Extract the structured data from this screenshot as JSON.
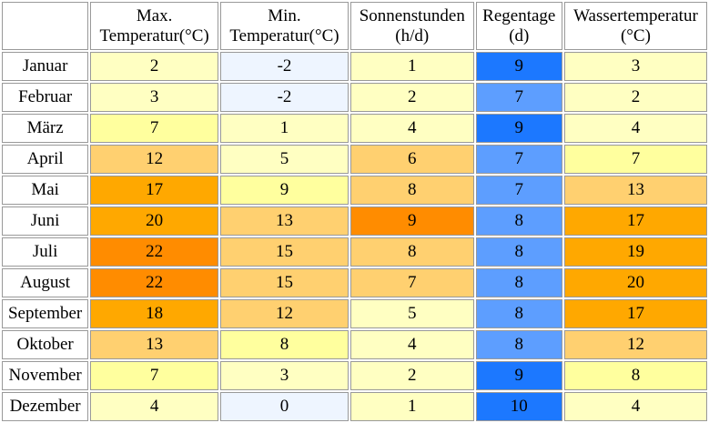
{
  "headers": [
    {
      "line1": "Max.",
      "line2": "Temperatur(°C)"
    },
    {
      "line1": "Min.",
      "line2": "Temperatur(°C)"
    },
    {
      "line1": "Sonnenstunden",
      "line2": "(h/d)"
    },
    {
      "line1": "Regentage",
      "line2": "(d)"
    },
    {
      "line1": "Wassertemperatur",
      "line2": "(°C)"
    }
  ],
  "rows": [
    {
      "month": "Januar",
      "cells": [
        {
          "v": "2",
          "c": "#ffffc2"
        },
        {
          "v": "-2",
          "c": "#eef5ff"
        },
        {
          "v": "1",
          "c": "#ffffc2"
        },
        {
          "v": "9",
          "c": "#1c78ff"
        },
        {
          "v": "3",
          "c": "#ffffc2"
        }
      ]
    },
    {
      "month": "Februar",
      "cells": [
        {
          "v": "3",
          "c": "#ffffc2"
        },
        {
          "v": "-2",
          "c": "#eef5ff"
        },
        {
          "v": "2",
          "c": "#ffffc2"
        },
        {
          "v": "7",
          "c": "#5d9eff"
        },
        {
          "v": "2",
          "c": "#ffffc2"
        }
      ]
    },
    {
      "month": "März",
      "cells": [
        {
          "v": "7",
          "c": "#ffff9e"
        },
        {
          "v": "1",
          "c": "#ffffc2"
        },
        {
          "v": "4",
          "c": "#ffffc2"
        },
        {
          "v": "9",
          "c": "#1c78ff"
        },
        {
          "v": "4",
          "c": "#ffffc2"
        }
      ]
    },
    {
      "month": "April",
      "cells": [
        {
          "v": "12",
          "c": "#ffd070"
        },
        {
          "v": "5",
          "c": "#ffffc2"
        },
        {
          "v": "6",
          "c": "#ffd070"
        },
        {
          "v": "7",
          "c": "#5d9eff"
        },
        {
          "v": "7",
          "c": "#ffff9e"
        }
      ]
    },
    {
      "month": "Mai",
      "cells": [
        {
          "v": "17",
          "c": "#ffa800"
        },
        {
          "v": "9",
          "c": "#ffff9e"
        },
        {
          "v": "8",
          "c": "#ffd070"
        },
        {
          "v": "7",
          "c": "#5d9eff"
        },
        {
          "v": "13",
          "c": "#ffd070"
        }
      ]
    },
    {
      "month": "Juni",
      "cells": [
        {
          "v": "20",
          "c": "#ffa800"
        },
        {
          "v": "13",
          "c": "#ffd070"
        },
        {
          "v": "9",
          "c": "#ff8c00"
        },
        {
          "v": "8",
          "c": "#5d9eff"
        },
        {
          "v": "17",
          "c": "#ffa800"
        }
      ]
    },
    {
      "month": "Juli",
      "cells": [
        {
          "v": "22",
          "c": "#ff8c00"
        },
        {
          "v": "15",
          "c": "#ffd070"
        },
        {
          "v": "8",
          "c": "#ffd070"
        },
        {
          "v": "8",
          "c": "#5d9eff"
        },
        {
          "v": "19",
          "c": "#ffa800"
        }
      ]
    },
    {
      "month": "August",
      "cells": [
        {
          "v": "22",
          "c": "#ff8c00"
        },
        {
          "v": "15",
          "c": "#ffd070"
        },
        {
          "v": "7",
          "c": "#ffd070"
        },
        {
          "v": "8",
          "c": "#5d9eff"
        },
        {
          "v": "20",
          "c": "#ffa800"
        }
      ]
    },
    {
      "month": "September",
      "cells": [
        {
          "v": "18",
          "c": "#ffa800"
        },
        {
          "v": "12",
          "c": "#ffd070"
        },
        {
          "v": "5",
          "c": "#ffffc2"
        },
        {
          "v": "8",
          "c": "#5d9eff"
        },
        {
          "v": "17",
          "c": "#ffa800"
        }
      ]
    },
    {
      "month": "Oktober",
      "cells": [
        {
          "v": "13",
          "c": "#ffd070"
        },
        {
          "v": "8",
          "c": "#ffff9e"
        },
        {
          "v": "4",
          "c": "#ffffc2"
        },
        {
          "v": "8",
          "c": "#5d9eff"
        },
        {
          "v": "12",
          "c": "#ffd070"
        }
      ]
    },
    {
      "month": "November",
      "cells": [
        {
          "v": "7",
          "c": "#ffff9e"
        },
        {
          "v": "3",
          "c": "#ffffc2"
        },
        {
          "v": "2",
          "c": "#ffffc2"
        },
        {
          "v": "9",
          "c": "#1c78ff"
        },
        {
          "v": "8",
          "c": "#ffff9e"
        }
      ]
    },
    {
      "month": "Dezember",
      "cells": [
        {
          "v": "4",
          "c": "#ffffc2"
        },
        {
          "v": "0",
          "c": "#eef5ff"
        },
        {
          "v": "1",
          "c": "#ffffc2"
        },
        {
          "v": "10",
          "c": "#1c78ff"
        },
        {
          "v": "4",
          "c": "#ffffc2"
        }
      ]
    }
  ]
}
